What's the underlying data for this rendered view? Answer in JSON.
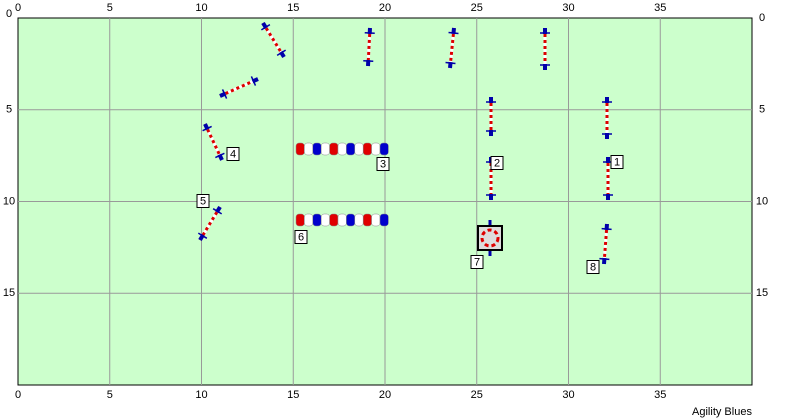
{
  "course": {
    "x_ticks": [
      0,
      5,
      10,
      15,
      20,
      25,
      30,
      35
    ],
    "y_ticks": [
      0,
      5,
      10,
      15
    ],
    "obstacle_labels": [
      "1",
      "2",
      "3",
      "4",
      "5",
      "6",
      "7",
      "8"
    ],
    "footer": "Agility Blues"
  }
}
